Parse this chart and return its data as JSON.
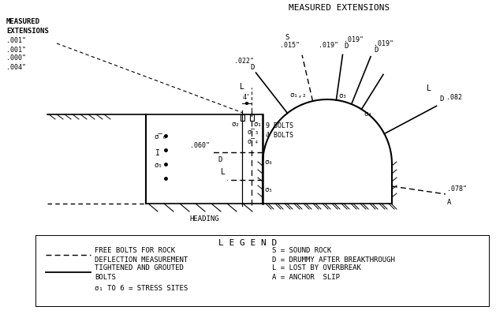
{
  "bg_color": "#ffffff",
  "line_color": "#000000",
  "title": "MEASURED EXTENSIONS",
  "legend_title": "L E G E N D",
  "legend_dashed_line1": "FREE BOLTS FOR ROCK",
  "legend_dashed_line2": "DEFLECTION MEASUREMENT",
  "legend_solid_line1": "TIGHTENED AND GROUTED",
  "legend_solid_line2": "BOLTS",
  "legend_sigma": "σ₁ TO 6 = STRESS SITES",
  "legend_right": [
    "S = SOUND ROCK",
    "D = DRUMMY AFTER BREAKTHROUGH",
    "L = LOST BY OVERBREAK",
    "A = ANCHOR  SLIP"
  ]
}
